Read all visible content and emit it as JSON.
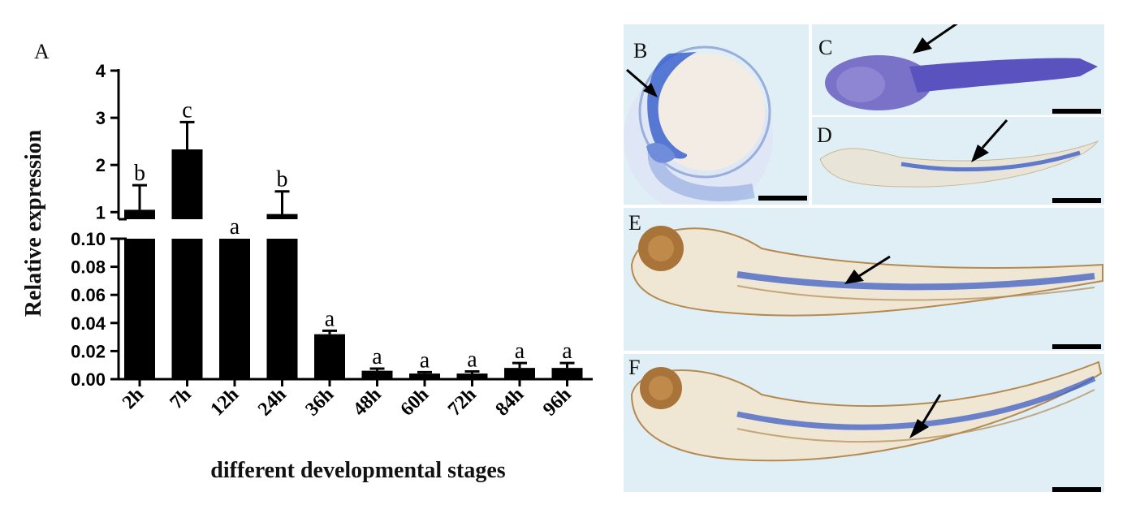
{
  "panel_labels": {
    "A": "A",
    "B": "B",
    "C": "C",
    "D": "D",
    "E": "E",
    "F": "F"
  },
  "chart_data": {
    "type": "bar",
    "categories": [
      "2h",
      "7h",
      "12h",
      "24h",
      "36h",
      "48h",
      "60h",
      "72h",
      "84h",
      "96h"
    ],
    "values": [
      1.05,
      2.33,
      0.1,
      0.96,
      0.032,
      0.006,
      0.004,
      0.004,
      0.008,
      0.008
    ],
    "errors": [
      0.52,
      0.58,
      0.0,
      0.48,
      0.0025,
      0.0015,
      0.001,
      0.0015,
      0.0035,
      0.0035
    ],
    "significance_letters": [
      "b",
      "c",
      "a",
      "b",
      "a",
      "a",
      "a",
      "a",
      "a",
      "a"
    ],
    "xlabel": "different developmental stages",
    "ylabel": "Relative expression",
    "y_axis_break": true,
    "upper_segment": {
      "ylim": [
        0.85,
        4
      ],
      "ticks": [
        "1",
        "2",
        "3",
        "4"
      ],
      "tick_values": [
        1,
        2,
        3,
        4
      ]
    },
    "lower_segment": {
      "ylim": [
        0,
        0.1
      ],
      "ticks": [
        "0.00",
        "0.02",
        "0.04",
        "0.06",
        "0.08",
        "0.10"
      ],
      "tick_values": [
        0,
        0.02,
        0.04,
        0.06,
        0.08,
        0.1
      ]
    },
    "bar_color": "#000000",
    "grid": false,
    "legend": "none"
  },
  "colors": {
    "panel_bg": "#dfeef6",
    "stain_blue": "#2f4fc4",
    "embryo_brown": "#a8743a"
  }
}
